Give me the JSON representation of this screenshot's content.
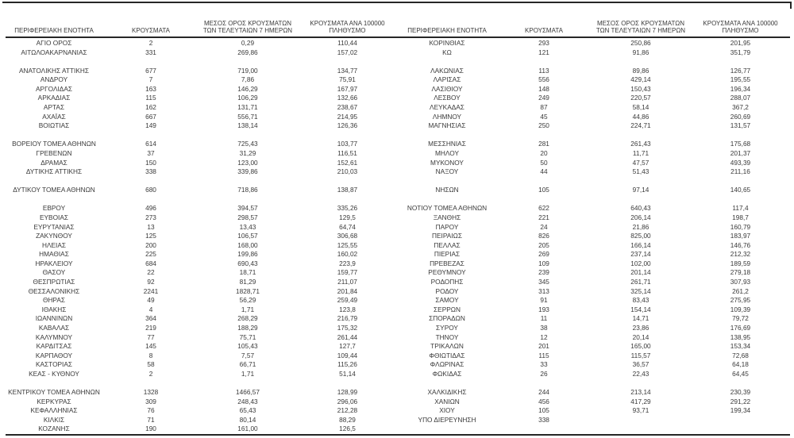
{
  "colors": {
    "background": "#ffffff",
    "text": "#3a3a3a",
    "line": "#262626"
  },
  "column_headers": {
    "region": "ΠΕΡΙΦΕΡΕΙΑΚΗ ΕΝΟΤΗΤΑ",
    "cases": "ΚΡΟΥΣΜΑΤΑ",
    "avg7": "ΜΕΣΟΣ ΟΡΟΣ ΚΡΟΥΣΜΑΤΩΝ ΤΩΝ ΤΕΛΕΥΤΑΙΩΝ 7 ΗΜΕΡΩΝ",
    "per100k": "ΚΡΟΥΣΜΑΤΑ ΑΝΑ 100000 ΠΛΗΘΥΣΜΟ"
  },
  "left_table": {
    "rows": [
      {
        "region": "ΑΓΙΟ ΟΡΟΣ",
        "cases": "2",
        "avg7": "0,29",
        "per100k": "110,44"
      },
      {
        "region": "ΑΙΤΩΛΟΑΚΑΡΝΑΝΙΑΣ",
        "cases": "331",
        "avg7": "269,86",
        "per100k": "157,02"
      },
      {
        "region": "",
        "cases": "",
        "avg7": "",
        "per100k": ""
      },
      {
        "region": "ΑΝΑΤΟΛΙΚΗΣ ΑΤΤΙΚΗΣ",
        "cases": "677",
        "avg7": "719,00",
        "per100k": "134,77"
      },
      {
        "region": "ΑΝΔΡΟΥ",
        "cases": "7",
        "avg7": "7,86",
        "per100k": "75,91"
      },
      {
        "region": "ΑΡΓΟΛΙΔΑΣ",
        "cases": "163",
        "avg7": "146,29",
        "per100k": "167,97"
      },
      {
        "region": "ΑΡΚΑΔΙΑΣ",
        "cases": "115",
        "avg7": "106,29",
        "per100k": "132,66"
      },
      {
        "region": "ΑΡΤΑΣ",
        "cases": "162",
        "avg7": "131,71",
        "per100k": "238,67"
      },
      {
        "region": "ΑΧΑΪΑΣ",
        "cases": "667",
        "avg7": "556,71",
        "per100k": "214,95"
      },
      {
        "region": "ΒΟΙΩΤΙΑΣ",
        "cases": "149",
        "avg7": "138,14",
        "per100k": "126,36"
      },
      {
        "region": "",
        "cases": "",
        "avg7": "",
        "per100k": ""
      },
      {
        "region": "ΒΟΡΕΙΟΥ ΤΟΜΕΑ ΑΘΗΝΩΝ",
        "cases": "614",
        "avg7": "725,43",
        "per100k": "103,77"
      },
      {
        "region": "ΓΡΕΒΕΝΩΝ",
        "cases": "37",
        "avg7": "31,29",
        "per100k": "116,51"
      },
      {
        "region": "ΔΡΑΜΑΣ",
        "cases": "150",
        "avg7": "123,00",
        "per100k": "152,61"
      },
      {
        "region": "ΔΥΤΙΚΗΣ ΑΤΤΙΚΗΣ",
        "cases": "338",
        "avg7": "339,86",
        "per100k": "210,03"
      },
      {
        "region": "",
        "cases": "",
        "avg7": "",
        "per100k": ""
      },
      {
        "region": "ΔΥΤΙΚΟΥ ΤΟΜΕΑ ΑΘΗΝΩΝ",
        "cases": "680",
        "avg7": "718,86",
        "per100k": "138,87"
      },
      {
        "region": "",
        "cases": "",
        "avg7": "",
        "per100k": ""
      },
      {
        "region": "ΕΒΡΟΥ",
        "cases": "496",
        "avg7": "394,57",
        "per100k": "335,26"
      },
      {
        "region": "ΕΥΒΟΙΑΣ",
        "cases": "273",
        "avg7": "298,57",
        "per100k": "129,5"
      },
      {
        "region": "ΕΥΡΥΤΑΝΙΑΣ",
        "cases": "13",
        "avg7": "13,43",
        "per100k": "64,74"
      },
      {
        "region": "ΖΑΚΥΝΘΟΥ",
        "cases": "125",
        "avg7": "106,57",
        "per100k": "306,68"
      },
      {
        "region": "ΗΛΕΙΑΣ",
        "cases": "200",
        "avg7": "168,00",
        "per100k": "125,55"
      },
      {
        "region": "ΗΜΑΘΙΑΣ",
        "cases": "225",
        "avg7": "199,86",
        "per100k": "160,02"
      },
      {
        "region": "ΗΡΑΚΛΕΙΟΥ",
        "cases": "684",
        "avg7": "690,43",
        "per100k": "223,9"
      },
      {
        "region": "ΘΑΣΟΥ",
        "cases": "22",
        "avg7": "18,71",
        "per100k": "159,77"
      },
      {
        "region": "ΘΕΣΠΡΩΤΙΑΣ",
        "cases": "92",
        "avg7": "81,29",
        "per100k": "211,07"
      },
      {
        "region": "ΘΕΣΣΑΛΟΝΙΚΗΣ",
        "cases": "2241",
        "avg7": "1828,71",
        "per100k": "201,84"
      },
      {
        "region": "ΘΗΡΑΣ",
        "cases": "49",
        "avg7": "56,29",
        "per100k": "259,49"
      },
      {
        "region": "ΙΘΑΚΗΣ",
        "cases": "4",
        "avg7": "1,71",
        "per100k": "123,8"
      },
      {
        "region": "ΙΩΑΝΝΙΝΩΝ",
        "cases": "364",
        "avg7": "268,29",
        "per100k": "216,79"
      },
      {
        "region": "ΚΑΒΑΛΑΣ",
        "cases": "219",
        "avg7": "188,29",
        "per100k": "175,32"
      },
      {
        "region": "ΚΑΛΥΜΝΟΥ",
        "cases": "77",
        "avg7": "75,71",
        "per100k": "261,44"
      },
      {
        "region": "ΚΑΡΔΙΤΣΑΣ",
        "cases": "145",
        "avg7": "105,43",
        "per100k": "127,7"
      },
      {
        "region": "ΚΑΡΠΑΘΟΥ",
        "cases": "8",
        "avg7": "7,57",
        "per100k": "109,44"
      },
      {
        "region": "ΚΑΣΤΟΡΙΑΣ",
        "cases": "58",
        "avg7": "66,71",
        "per100k": "115,26"
      },
      {
        "region": "ΚΕΑΣ - ΚΥΘΝΟΥ",
        "cases": "2",
        "avg7": "1,71",
        "per100k": "51,14"
      },
      {
        "region": "",
        "cases": "",
        "avg7": "",
        "per100k": ""
      },
      {
        "region": "ΚΕΝΤΡΙΚΟΥ ΤΟΜΕΑ ΑΘΗΝΩΝ",
        "cases": "1328",
        "avg7": "1466,57",
        "per100k": "128,99"
      },
      {
        "region": "ΚΕΡΚΥΡΑΣ",
        "cases": "309",
        "avg7": "248,43",
        "per100k": "296,06"
      },
      {
        "region": "ΚΕΦΑΛΛΗΝΙΑΣ",
        "cases": "76",
        "avg7": "65,43",
        "per100k": "212,28"
      },
      {
        "region": "ΚΙΛΚΙΣ",
        "cases": "71",
        "avg7": "80,14",
        "per100k": "88,29"
      },
      {
        "region": "ΚΟΖΑΝΗΣ",
        "cases": "190",
        "avg7": "161,00",
        "per100k": "126,5"
      }
    ]
  },
  "right_table": {
    "rows": [
      {
        "region": "ΚΟΡΙΝΘΙΑΣ",
        "cases": "293",
        "avg7": "250,86",
        "per100k": "201,95"
      },
      {
        "region": "ΚΩ",
        "cases": "121",
        "avg7": "91,86",
        "per100k": "351,79"
      },
      {
        "region": "",
        "cases": "",
        "avg7": "",
        "per100k": ""
      },
      {
        "region": "ΛΑΚΩΝΙΑΣ",
        "cases": "113",
        "avg7": "89,86",
        "per100k": "126,77"
      },
      {
        "region": "ΛΑΡΙΣΑΣ",
        "cases": "556",
        "avg7": "429,14",
        "per100k": "195,55"
      },
      {
        "region": "ΛΑΣΙΘΙΟΥ",
        "cases": "148",
        "avg7": "150,43",
        "per100k": "196,34"
      },
      {
        "region": "ΛΕΣΒΟΥ",
        "cases": "249",
        "avg7": "220,57",
        "per100k": "288,07"
      },
      {
        "region": "ΛΕΥΚΑΔΑΣ",
        "cases": "87",
        "avg7": "58,14",
        "per100k": "367,2"
      },
      {
        "region": "ΛΗΜΝΟΥ",
        "cases": "45",
        "avg7": "44,86",
        "per100k": "260,69"
      },
      {
        "region": "ΜΑΓΝΗΣΙΑΣ",
        "cases": "250",
        "avg7": "224,71",
        "per100k": "131,57"
      },
      {
        "region": "",
        "cases": "",
        "avg7": "",
        "per100k": ""
      },
      {
        "region": "ΜΕΣΣΗΝΙΑΣ",
        "cases": "281",
        "avg7": "261,43",
        "per100k": "175,68"
      },
      {
        "region": "ΜΗΛΟΥ",
        "cases": "20",
        "avg7": "11,71",
        "per100k": "201,37"
      },
      {
        "region": "ΜΥΚΟΝΟΥ",
        "cases": "50",
        "avg7": "47,57",
        "per100k": "493,39"
      },
      {
        "region": "ΝΑΞΟΥ",
        "cases": "44",
        "avg7": "51,43",
        "per100k": "211,16"
      },
      {
        "region": "",
        "cases": "",
        "avg7": "",
        "per100k": ""
      },
      {
        "region": "ΝΗΣΩΝ",
        "cases": "105",
        "avg7": "97,14",
        "per100k": "140,65"
      },
      {
        "region": "",
        "cases": "",
        "avg7": "",
        "per100k": ""
      },
      {
        "region": "ΝΟΤΙΟΥ ΤΟΜΕΑ ΑΘΗΝΩΝ",
        "cases": "622",
        "avg7": "640,43",
        "per100k": "117,4"
      },
      {
        "region": "ΞΑΝΘΗΣ",
        "cases": "221",
        "avg7": "206,14",
        "per100k": "198,7"
      },
      {
        "region": "ΠΑΡΟΥ",
        "cases": "24",
        "avg7": "21,86",
        "per100k": "160,79"
      },
      {
        "region": "ΠΕΙΡΑΙΩΣ",
        "cases": "826",
        "avg7": "825,00",
        "per100k": "183,97"
      },
      {
        "region": "ΠΕΛΛΑΣ",
        "cases": "205",
        "avg7": "166,14",
        "per100k": "146,76"
      },
      {
        "region": "ΠΙΕΡΙΑΣ",
        "cases": "269",
        "avg7": "237,14",
        "per100k": "212,32"
      },
      {
        "region": "ΠΡΕΒΕΖΑΣ",
        "cases": "109",
        "avg7": "102,00",
        "per100k": "189,59"
      },
      {
        "region": "ΡΕΘΥΜΝΟΥ",
        "cases": "239",
        "avg7": "201,14",
        "per100k": "279,18"
      },
      {
        "region": "ΡΟΔΟΠΗΣ",
        "cases": "345",
        "avg7": "261,71",
        "per100k": "307,93"
      },
      {
        "region": "ΡΟΔΟΥ",
        "cases": "313",
        "avg7": "325,14",
        "per100k": "261,2"
      },
      {
        "region": "ΣΑΜΟΥ",
        "cases": "91",
        "avg7": "83,43",
        "per100k": "275,95"
      },
      {
        "region": "ΣΕΡΡΩΝ",
        "cases": "193",
        "avg7": "154,14",
        "per100k": "109,39"
      },
      {
        "region": "ΣΠΟΡΑΔΩΝ",
        "cases": "11",
        "avg7": "14,71",
        "per100k": "79,72"
      },
      {
        "region": "ΣΥΡΟΥ",
        "cases": "38",
        "avg7": "23,86",
        "per100k": "176,69"
      },
      {
        "region": "ΤΗΝΟΥ",
        "cases": "12",
        "avg7": "20,14",
        "per100k": "138,95"
      },
      {
        "region": "ΤΡΙΚΑΛΩΝ",
        "cases": "201",
        "avg7": "165,00",
        "per100k": "153,34"
      },
      {
        "region": "ΦΘΙΩΤΙΔΑΣ",
        "cases": "115",
        "avg7": "115,57",
        "per100k": "72,68"
      },
      {
        "region": "ΦΛΩΡΙΝΑΣ",
        "cases": "33",
        "avg7": "36,57",
        "per100k": "64,18"
      },
      {
        "region": "ΦΩΚΙΔΑΣ",
        "cases": "26",
        "avg7": "22,43",
        "per100k": "64,45"
      },
      {
        "region": "",
        "cases": "",
        "avg7": "",
        "per100k": ""
      },
      {
        "region": "ΧΑΛΚΙΔΙΚΗΣ",
        "cases": "244",
        "avg7": "213,14",
        "per100k": "230,39"
      },
      {
        "region": "ΧΑΝΙΩΝ",
        "cases": "456",
        "avg7": "417,29",
        "per100k": "291,22"
      },
      {
        "region": "ΧΙΟΥ",
        "cases": "105",
        "avg7": "93,71",
        "per100k": "199,34"
      },
      {
        "region": "ΥΠΟ ΔΙΕΡΕΥΝΗΣΗ",
        "cases": "338",
        "avg7": "",
        "per100k": ""
      },
      {
        "region": "",
        "cases": "",
        "avg7": "",
        "per100k": ""
      }
    ]
  }
}
